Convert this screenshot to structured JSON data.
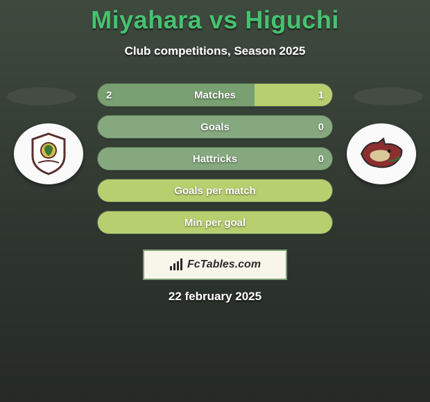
{
  "header": {
    "player1": "Miyahara",
    "vs": "vs",
    "player2": "Higuchi",
    "subtitle": "Club competitions, Season 2025"
  },
  "colors": {
    "title": "#46c26f",
    "text": "#ffffff",
    "background_top": "#3f4a3f",
    "background_bottom": "#252a25",
    "row_base": "#86a87f",
    "row_highlight": "#b8cf6f",
    "row_border": "#566b52",
    "brandbox_bg": "#f8f6eb",
    "brandbox_border": "#7ea07a",
    "brand_text": "#2a2a2a"
  },
  "rows": [
    {
      "label": "Matches",
      "left": "2",
      "right": "1",
      "left_pct": 67,
      "right_pct": 33,
      "left_color": "#79a071",
      "right_color": "#b8cf6f",
      "show_vals": true
    },
    {
      "label": "Goals",
      "left": "",
      "right": "0",
      "left_pct": 100,
      "right_pct": 0,
      "left_color": "#86a87f",
      "right_color": "#b8cf6f",
      "show_vals": true
    },
    {
      "label": "Hattricks",
      "left": "",
      "right": "0",
      "left_pct": 100,
      "right_pct": 0,
      "left_color": "#86a87f",
      "right_color": "#b8cf6f",
      "show_vals": true
    },
    {
      "label": "Goals per match",
      "left": "",
      "right": "",
      "left_pct": 100,
      "right_pct": 0,
      "left_color": "#b8cf6f",
      "right_color": "#b8cf6f",
      "show_vals": false
    },
    {
      "label": "Min per goal",
      "left": "",
      "right": "",
      "left_pct": 100,
      "right_pct": 0,
      "left_color": "#b8cf6f",
      "right_color": "#b8cf6f",
      "show_vals": false
    }
  ],
  "brand": {
    "text": "FcTables.com"
  },
  "date": "22 february 2025",
  "badges": {
    "left_alt": "team-badge-left",
    "right_alt": "team-badge-right"
  },
  "typography": {
    "title_fontsize": 36,
    "subtitle_fontsize": 17,
    "row_label_fontsize": 15,
    "brand_fontsize": 16
  }
}
